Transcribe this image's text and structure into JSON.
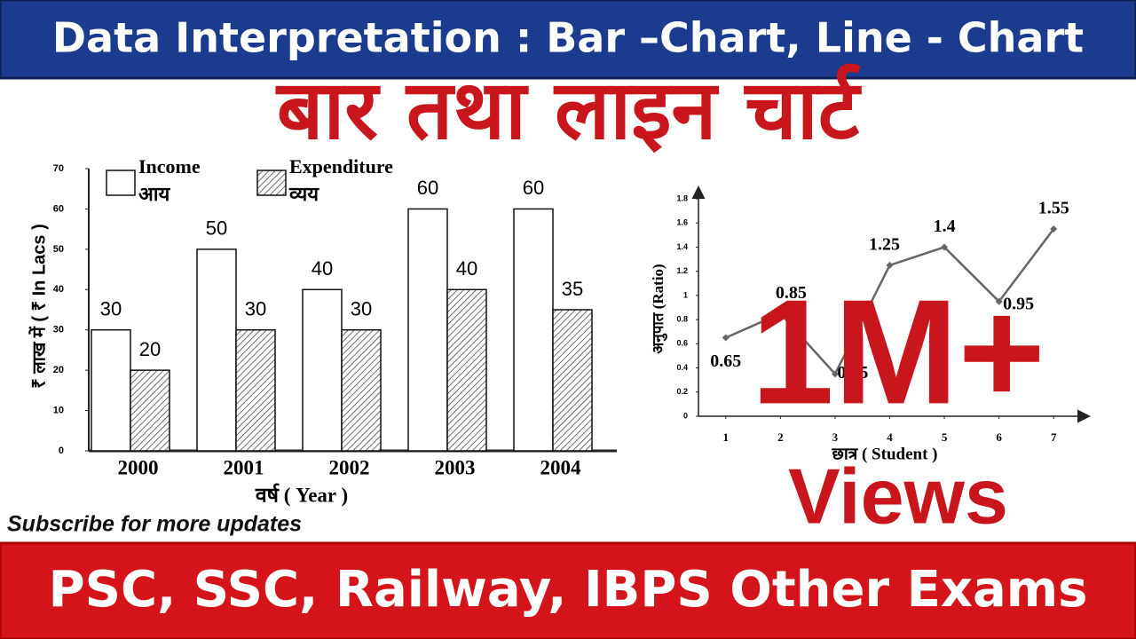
{
  "header": {
    "title": "Data Interpretation : Bar –Chart, Line - Chart"
  },
  "hindi_title": "बार तथा लाइन चार्ट",
  "chart_data": [
    {
      "type": "bar",
      "categories": [
        "2000",
        "2001",
        "2002",
        "2003",
        "2004"
      ],
      "series": [
        {
          "name": "Income",
          "name_hindi": "आय",
          "color": "#ffffff",
          "values": [
            30,
            50,
            40,
            60,
            60
          ]
        },
        {
          "name": "Expenditure",
          "name_hindi": "व्यय",
          "color": "#ffffff",
          "pattern": "hatch",
          "values": [
            20,
            30,
            30,
            40,
            35
          ]
        }
      ],
      "ylim": [
        0,
        70
      ],
      "yticks": [
        0,
        10,
        20,
        30,
        40,
        50,
        60,
        70
      ],
      "x_label": "वर्ष ( Year )",
      "y_label": "₹ लाख में ( ₹ In Lacs )"
    },
    {
      "type": "line",
      "x": [
        1,
        2,
        3,
        4,
        5,
        6,
        7
      ],
      "values": [
        0.65,
        0.85,
        0.35,
        1.25,
        1.4,
        0.95,
        1.55
      ],
      "color": "#666666",
      "xlim": [
        0.5,
        7.5
      ],
      "xticks": [
        1,
        2,
        3,
        4,
        5,
        6,
        7
      ],
      "ylim": [
        0,
        1.8
      ],
      "yticks": [
        0,
        0.2,
        0.4,
        0.6,
        0.8,
        1,
        1.2,
        1.4,
        1.6,
        1.8
      ],
      "x_label": "छात्र ( Student )",
      "y_label": "अनुपात (Ratio)"
    }
  ],
  "subscribe": "Subscribe for more updates",
  "badge": {
    "count": "1M+",
    "label": "Views"
  },
  "footer": {
    "text": "PSC, SSC, Railway, IBPS Other Exams"
  }
}
